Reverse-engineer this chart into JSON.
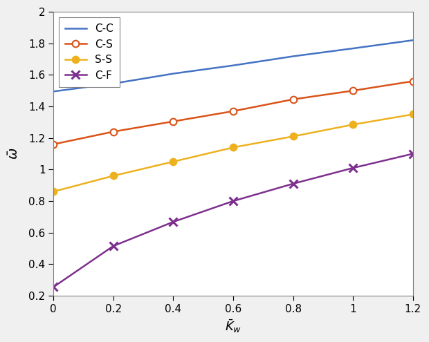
{
  "x": [
    0,
    0.2,
    0.4,
    0.6,
    0.8,
    1.0,
    1.2
  ],
  "CC": [
    1.495,
    1.545,
    1.608,
    1.66,
    1.718,
    1.768,
    1.82
  ],
  "CS": [
    1.16,
    1.24,
    1.305,
    1.37,
    1.445,
    1.5,
    1.56
  ],
  "SS": [
    0.86,
    0.96,
    1.05,
    1.14,
    1.21,
    1.285,
    1.35
  ],
  "CF": [
    0.255,
    0.515,
    0.668,
    0.8,
    0.91,
    1.01,
    1.1
  ],
  "CC_color": "#4472C4",
  "CS_color": "#D95319",
  "SS_color": "#EDB120",
  "CF_color": "#7E2F8E",
  "xlabel": "$\\bar{K}_w$",
  "ylabel": "$\\bar{\\omega}$",
  "xlim": [
    0,
    1.2
  ],
  "ylim": [
    0.2,
    2.0
  ],
  "xticks": [
    0,
    0.2,
    0.4,
    0.6,
    0.8,
    1.0,
    1.2
  ],
  "yticks": [
    0.2,
    0.4,
    0.6,
    0.8,
    1.0,
    1.2,
    1.4,
    1.6,
    1.8,
    2.0
  ],
  "legend_labels": [
    "C-C",
    "C-S",
    "S-S",
    "C-F"
  ],
  "bg_color": "#F0F0F0",
  "plot_bg_color": "#FFFFFF",
  "linewidth": 1.8,
  "markersize": 7
}
